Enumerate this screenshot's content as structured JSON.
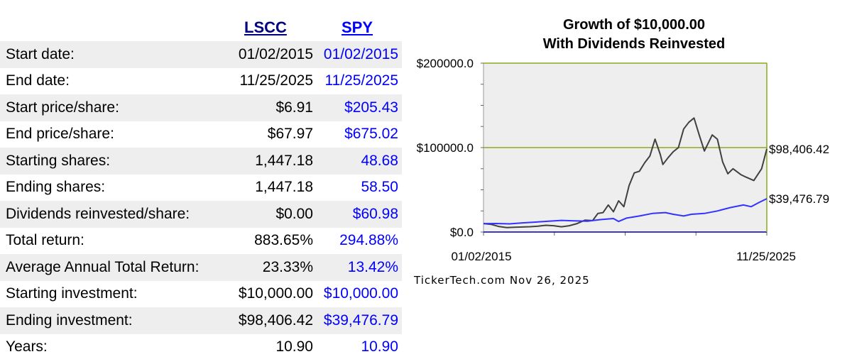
{
  "table": {
    "col_a": "LSCC",
    "col_b": "SPY",
    "rows": [
      {
        "label": "Start date:",
        "a": "01/02/2015",
        "b": "01/02/2015"
      },
      {
        "label": "End date:",
        "a": "11/25/2025",
        "b": "11/25/2025"
      },
      {
        "label": "Start price/share:",
        "a": "$6.91",
        "b": "$205.43"
      },
      {
        "label": "End price/share:",
        "a": "$67.97",
        "b": "$675.02"
      },
      {
        "label": "Starting shares:",
        "a": "1,447.18",
        "b": "48.68"
      },
      {
        "label": "Ending shares:",
        "a": "1,447.18",
        "b": "58.50"
      },
      {
        "label": "Dividends reinvested/share:",
        "a": "$0.00",
        "b": "$60.98"
      },
      {
        "label": "Total return:",
        "a": "883.65%",
        "b": "294.88%"
      },
      {
        "label": "Average Annual Total Return:",
        "a": "23.33%",
        "b": "13.42%"
      },
      {
        "label": "Starting investment:",
        "a": "$10,000.00",
        "b": "$10,000.00"
      },
      {
        "label": "Ending investment:",
        "a": "$98,406.42",
        "b": "$39,476.79"
      },
      {
        "label": "Years:",
        "a": "10.90",
        "b": "10.90"
      }
    ]
  },
  "footer": "TickerTech.com  Nov 26, 2025",
  "colors": {
    "lscc_line": "#404040",
    "spy_line": "#3333ff",
    "gridline": "#8aaa22",
    "plot_bg": "#eeeeee",
    "baseline": "#000080",
    "row_shade": "#eeeeee"
  },
  "chart_data": {
    "type": "line",
    "title": [
      "Growth of $10,000.00",
      "With Dividends Reinvested"
    ],
    "ylim": [
      0,
      200000
    ],
    "y_ticks": [
      0,
      100000,
      200000
    ],
    "y_tick_labels": [
      "$0.0",
      "$100000.0",
      "$200000.0"
    ],
    "x_tick_labels": [
      "01/02/2015",
      "11/25/2025"
    ],
    "xlim": [
      2015.0,
      2025.9
    ],
    "grid": true,
    "series": [
      {
        "name": "LSCC",
        "end_label": "$98,406.42",
        "x": [
          2015.0,
          2015.3,
          2015.6,
          2015.9,
          2016.2,
          2016.5,
          2016.8,
          2017.1,
          2017.4,
          2017.7,
          2018.0,
          2018.3,
          2018.6,
          2018.9,
          2019.2,
          2019.4,
          2019.6,
          2019.8,
          2020.0,
          2020.2,
          2020.4,
          2020.6,
          2020.8,
          2021.0,
          2021.2,
          2021.4,
          2021.6,
          2021.8,
          2021.9,
          2022.1,
          2022.3,
          2022.5,
          2022.7,
          2022.9,
          2023.1,
          2023.3,
          2023.5,
          2023.8,
          2024.0,
          2024.2,
          2024.4,
          2024.6,
          2024.9,
          2025.1,
          2025.4,
          2025.7,
          2025.9
        ],
        "values": [
          10000,
          9000,
          6500,
          5200,
          5600,
          6000,
          6300,
          7000,
          8000,
          7500,
          6200,
          7500,
          10000,
          14000,
          13500,
          22000,
          23000,
          32000,
          24000,
          37000,
          30000,
          55000,
          70000,
          72000,
          82000,
          90000,
          110000,
          92000,
          80000,
          88000,
          95000,
          100000,
          122000,
          130000,
          135000,
          115000,
          96000,
          115000,
          110000,
          83000,
          69000,
          75000,
          68000,
          65000,
          61000,
          75000,
          98406
        ]
      },
      {
        "name": "SPY",
        "end_label": "$39,476.79",
        "x": [
          2015.0,
          2015.5,
          2016.0,
          2016.5,
          2017.0,
          2017.5,
          2018.0,
          2018.5,
          2019.0,
          2019.5,
          2020.0,
          2020.2,
          2020.5,
          2021.0,
          2021.5,
          2022.0,
          2022.3,
          2022.7,
          2023.0,
          2023.5,
          2024.0,
          2024.5,
          2025.0,
          2025.3,
          2025.6,
          2025.9
        ],
        "values": [
          10000,
          10100,
          9700,
          10800,
          11800,
          12800,
          13800,
          13200,
          12800,
          14700,
          16000,
          12500,
          16500,
          19000,
          22000,
          23000,
          21000,
          19000,
          21000,
          22000,
          25000,
          29000,
          32000,
          30000,
          35000,
          39477
        ]
      }
    ]
  }
}
